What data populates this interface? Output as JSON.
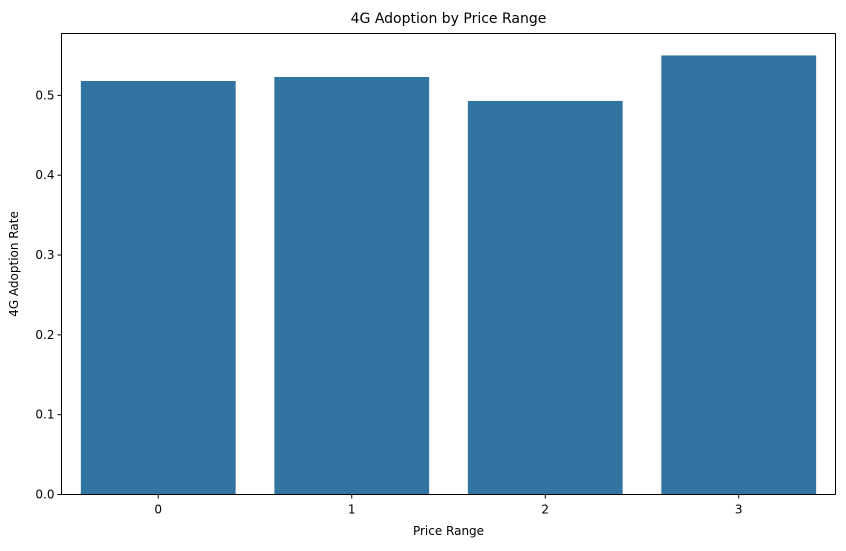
{
  "chart_data": {
    "type": "bar",
    "title": "4G Adoption by Price Range",
    "xlabel": "Price Range",
    "ylabel": "4G Adoption Rate",
    "categories": [
      "0",
      "1",
      "2",
      "3"
    ],
    "values": [
      0.518,
      0.523,
      0.493,
      0.55
    ],
    "ylim": [
      0,
      0.5775
    ],
    "yticks": [
      0.0,
      0.1,
      0.2,
      0.3,
      0.4,
      0.5
    ],
    "ytick_labels": [
      "0.0",
      "0.1",
      "0.2",
      "0.3",
      "0.4",
      "0.5"
    ],
    "grid": false,
    "bar_color": "#3274a1"
  }
}
